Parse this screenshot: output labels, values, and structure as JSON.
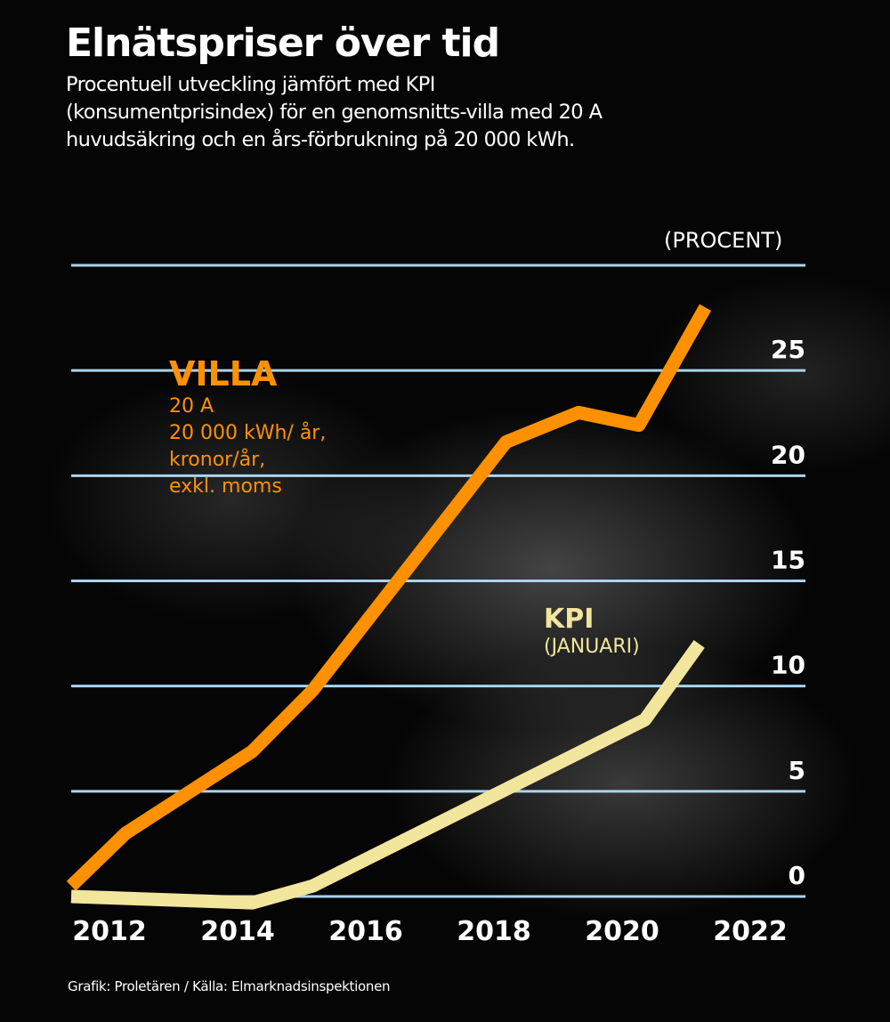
{
  "header": {
    "title": "Elnätspriser över tid",
    "subtitle": "Procentuell utveckling jämfört med KPI (konsumentprisindex) för en genomsnitts-villa med 20 A huvudsäkring och en års-förbrukning på 20 000 kWh."
  },
  "legend": {
    "villa": {
      "title": "VILLA",
      "lines": [
        "20 A",
        "20 000 kWh/ år,",
        "kronor/år,",
        "exkl. moms"
      ]
    },
    "kpi": {
      "title": "KPI",
      "lines": [
        "(JANUARI)"
      ]
    }
  },
  "credit": "Grafik: Proletären /  Källa: Elmarknadsinspektionen",
  "colors": {
    "villa": "#ff9100",
    "kpi": "#f2e59c",
    "grid": "#a9d4ef",
    "text": "#ffffff"
  },
  "chart_data": {
    "type": "line",
    "title": "Elnätspriser över tid",
    "subtitle": "Procentuell utveckling jämfört med KPI (konsumentprisindex) för en genomsnittsvilla med 20 A huvudsäkring och en årsförbrukning på 20 000 kWh.",
    "xlabel": "",
    "ylabel": "(PROCENT)",
    "x_ticks": [
      "2012",
      "2014",
      "2016",
      "2018",
      "2020",
      "2022"
    ],
    "y_ticks": [
      "0",
      "5",
      "10",
      "15",
      "20",
      "25"
    ],
    "ylim": [
      0,
      30
    ],
    "xlim": [
      2011.6,
      2022.8
    ],
    "grid": true,
    "series": [
      {
        "name": "VILLA",
        "x": [
          2011.6,
          2012.5,
          2014.6,
          2015.6,
          2018.8,
          2020.0,
          2021.0,
          2022.1
        ],
        "values": [
          0.5,
          3.0,
          6.9,
          9.8,
          21.6,
          23.0,
          22.4,
          28.0
        ]
      },
      {
        "name": "KPI",
        "x": [
          2011.6,
          2014.6,
          2015.6,
          2021.1,
          2022.0
        ],
        "values": [
          0.0,
          -0.3,
          0.5,
          8.4,
          12.0
        ]
      }
    ]
  }
}
